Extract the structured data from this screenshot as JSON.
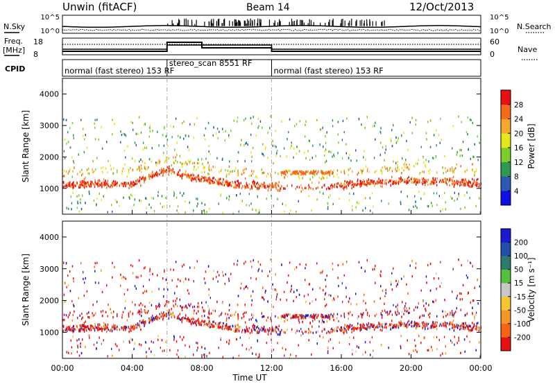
{
  "header": {
    "station": "Unwin (fitACF)",
    "beam": "Beam 14",
    "date": "12/Oct/2013"
  },
  "top_panels": {
    "nsky_label": "N.Sky",
    "nsky_ticks": [
      "10^5",
      "10^0"
    ],
    "nsearch_label": "N.Search",
    "freq_label_1": "Freq.",
    "freq_label_2": "[MHz]",
    "freq_ticks": [
      "18",
      "8"
    ],
    "nave_ticks": [
      "60",
      "0"
    ],
    "nave_label": "Nave",
    "cpid_label": "CPID",
    "cpid_segments": [
      {
        "label": "normal (fast stereo) 153 RF",
        "start_hour": 0,
        "end_hour": 6
      },
      {
        "label": "stereo_scan 8551 RF",
        "start_hour": 6,
        "end_hour": 12
      },
      {
        "label": "normal (fast stereo) 153 RF",
        "start_hour": 12,
        "end_hour": 24
      }
    ]
  },
  "axes": {
    "ylabel": "Slant Range [km]",
    "xlabel": "Time UT",
    "yticks": [
      "1000",
      "2000",
      "3000",
      "4000"
    ],
    "xticks": [
      "00:00",
      "04:00",
      "08:00",
      "12:00",
      "16:00",
      "20:00",
      "00:00"
    ]
  },
  "colorbars": {
    "power": {
      "label": "Power [dB]",
      "ticks": [
        "4",
        "8",
        "12",
        "16",
        "20",
        "24",
        "28"
      ],
      "colors": [
        "#1010e6",
        "#2a5ab4",
        "#2d9a50",
        "#7ccc2c",
        "#e6e61a",
        "#f5a82a",
        "#f56a1a",
        "#e81010"
      ]
    },
    "velocity": {
      "label": "Velocity [m s⁻¹]",
      "ticks": [
        "200",
        "100",
        "50",
        "15",
        "-15",
        "-50",
        "-100",
        "-200"
      ],
      "colors": [
        "#1a1ad2",
        "#1f4fa8",
        "#2d7a6e",
        "#52c23a",
        "#c8c8c8",
        "#f5c832",
        "#f59628",
        "#f56414",
        "#e81010"
      ]
    }
  },
  "chart_data": {
    "type": "heatmap",
    "x_unit": "hours UT",
    "y_unit": "km",
    "xlim": [
      0,
      24
    ],
    "ylim": [
      180,
      4500
    ],
    "grid": false,
    "mode_change_hours": [
      6,
      12
    ],
    "power_main_band": [
      {
        "t": 0,
        "r": 1100
      },
      {
        "t": 2,
        "r": 1150
      },
      {
        "t": 4,
        "r": 1150
      },
      {
        "t": 6,
        "r": 1600
      },
      {
        "t": 7,
        "r": 1400
      },
      {
        "t": 8,
        "r": 1300
      },
      {
        "t": 10,
        "r": 1100
      },
      {
        "t": 12,
        "r": 1050
      },
      {
        "t": 14,
        "r": 1000
      },
      {
        "t": 16,
        "r": 1100
      },
      {
        "t": 18,
        "r": 1200
      },
      {
        "t": 20,
        "r": 1250
      },
      {
        "t": 22,
        "r": 1200
      },
      {
        "t": 24,
        "r": 1150
      }
    ],
    "nsky_approx_log10": 0.5,
    "nave_approx": {
      "normal": 15,
      "stereo_scan": 35
    }
  }
}
